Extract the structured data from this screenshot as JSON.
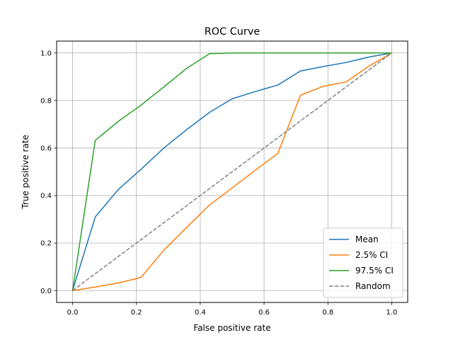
{
  "chart_data": {
    "type": "line",
    "title": "ROC Curve",
    "xlabel": "False positive rate",
    "ylabel": "True positive rate",
    "xlim": [
      -0.05,
      1.05
    ],
    "ylim": [
      -0.05,
      1.05
    ],
    "grid": true,
    "xticks": [
      0.0,
      0.2,
      0.4,
      0.6,
      0.8,
      1.0
    ],
    "yticks": [
      0.0,
      0.2,
      0.4,
      0.6,
      0.8,
      1.0
    ],
    "xtick_labels": [
      "0.0",
      "0.2",
      "0.4",
      "0.6",
      "0.8",
      "1.0"
    ],
    "ytick_labels": [
      "0.0",
      "0.2",
      "0.4",
      "0.6",
      "0.8",
      "1.0"
    ],
    "legend_position": "bottom-right",
    "series": [
      {
        "name": "Mean",
        "color": "#1f77b4",
        "dash": "solid",
        "x": [
          0.0,
          0.071,
          0.143,
          0.214,
          0.286,
          0.357,
          0.429,
          0.5,
          0.571,
          0.643,
          0.714,
          0.786,
          0.857,
          0.929,
          1.0
        ],
        "y": [
          0.0,
          0.31,
          0.425,
          0.51,
          0.6,
          0.677,
          0.75,
          0.807,
          0.837,
          0.865,
          0.924,
          0.943,
          0.96,
          0.983,
          1.0
        ]
      },
      {
        "name": "2.5% CI",
        "color": "#ff7f0e",
        "dash": "solid",
        "x": [
          0.0,
          0.071,
          0.143,
          0.214,
          0.286,
          0.357,
          0.429,
          0.5,
          0.571,
          0.643,
          0.714,
          0.786,
          0.857,
          0.929,
          1.0
        ],
        "y": [
          0.0,
          0.015,
          0.032,
          0.055,
          0.17,
          0.265,
          0.36,
          0.432,
          0.505,
          0.577,
          0.822,
          0.86,
          0.878,
          0.945,
          1.0
        ]
      },
      {
        "name": "97.5% CI",
        "color": "#2ca02c",
        "dash": "solid",
        "x": [
          0.0,
          0.071,
          0.143,
          0.214,
          0.286,
          0.357,
          0.429,
          0.5,
          0.571,
          0.643,
          0.714,
          0.786,
          0.857,
          0.929,
          1.0
        ],
        "y": [
          0.0,
          0.632,
          0.712,
          0.78,
          0.857,
          0.935,
          0.997,
          1.0,
          1.0,
          1.0,
          1.0,
          1.0,
          1.0,
          1.0,
          1.0
        ]
      },
      {
        "name": "Random",
        "color": "#808080",
        "dash": "dashed",
        "x": [
          0.0,
          1.0
        ],
        "y": [
          0.0,
          1.0
        ]
      }
    ]
  }
}
